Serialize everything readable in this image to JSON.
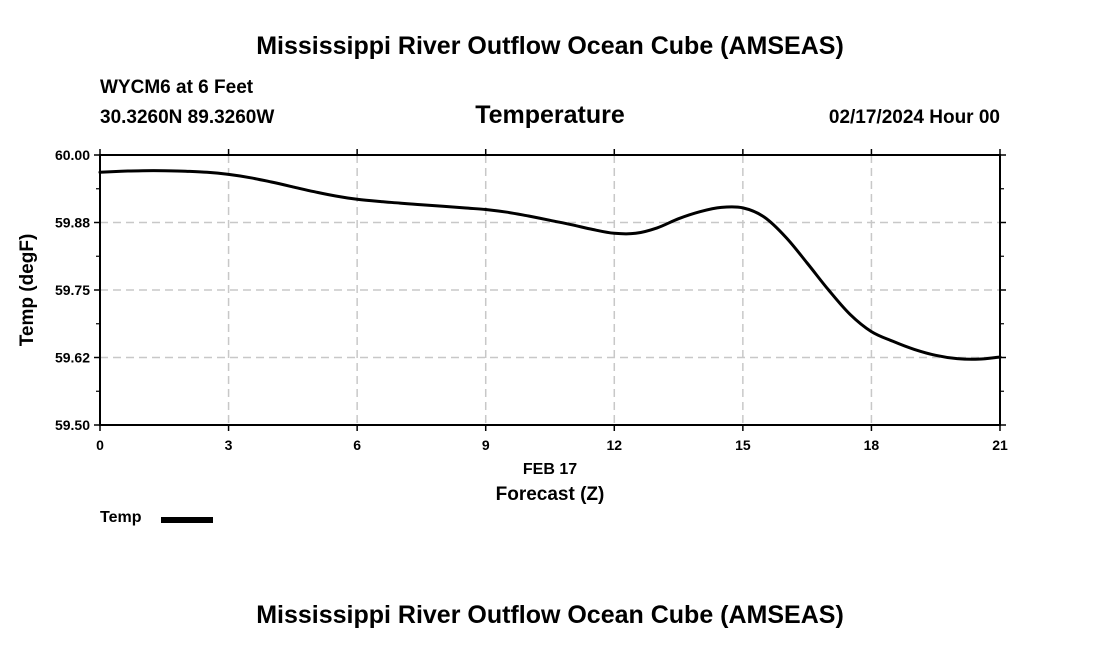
{
  "header": {
    "title": "Mississippi River Outflow Ocean Cube (AMSEAS)",
    "station": "WYCM6 at 6 Feet",
    "location": "30.3260N  89.3260W",
    "panel_title": "Temperature",
    "valid_time": "02/17/2024 Hour 00"
  },
  "footer": {
    "title": "Mississippi River Outflow Ocean Cube (AMSEAS)"
  },
  "legend": {
    "label": "Temp",
    "color": "#000000"
  },
  "chart_data": {
    "type": "line",
    "title": "Temperature",
    "xlabel": "Forecast (Z)",
    "xsublabel": "FEB 17",
    "ylabel": "Temp (degF)",
    "xlim": [
      0,
      21
    ],
    "ylim": [
      59.5,
      60.0
    ],
    "xticks": [
      0,
      3,
      6,
      9,
      12,
      15,
      18,
      21
    ],
    "xtick_labels": [
      "0",
      "3",
      "6",
      "9",
      "12",
      "15",
      "18",
      "21"
    ],
    "yticks": [
      59.5,
      59.625,
      59.75,
      59.875,
      60.0
    ],
    "ytick_labels": [
      "59.50",
      "59.62",
      "59.75",
      "59.88",
      "60.00"
    ],
    "grid": true,
    "legend_position": "bottom-left",
    "series": [
      {
        "name": "Temp",
        "color": "#000000",
        "x": [
          0,
          0.5,
          1,
          1.5,
          2,
          2.5,
          3,
          3.5,
          4,
          4.5,
          5,
          5.5,
          6,
          6.5,
          7,
          7.5,
          8,
          8.5,
          9,
          9.5,
          10,
          10.5,
          11,
          11.5,
          12,
          12.5,
          13,
          13.5,
          14,
          14.5,
          15,
          15.5,
          16,
          16.5,
          17,
          17.5,
          18,
          18.5,
          19,
          19.5,
          20,
          20.5,
          21
        ],
        "y": [
          59.968,
          59.97,
          59.971,
          59.971,
          59.97,
          59.968,
          59.964,
          59.958,
          59.95,
          59.941,
          59.932,
          59.924,
          59.918,
          59.914,
          59.911,
          59.908,
          59.905,
          59.902,
          59.899,
          59.894,
          59.887,
          59.879,
          59.871,
          59.862,
          59.855,
          59.855,
          59.865,
          59.882,
          59.895,
          59.903,
          59.902,
          59.885,
          59.848,
          59.8,
          59.75,
          59.705,
          59.673,
          59.655,
          59.64,
          59.629,
          59.623,
          59.622,
          59.626
        ]
      }
    ]
  }
}
